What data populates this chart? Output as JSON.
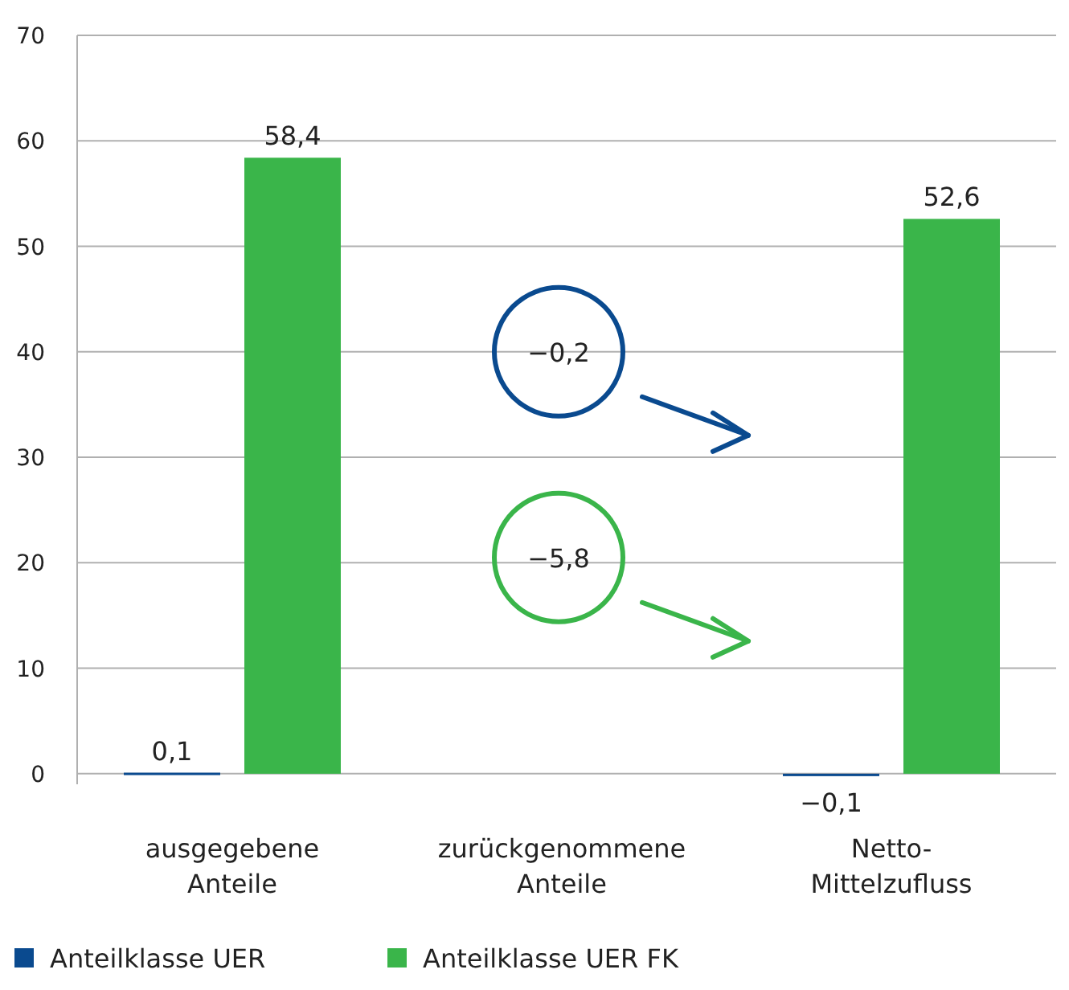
{
  "chart_data": {
    "type": "bar",
    "categories": [
      "ausgegebene Anteile",
      "zurückgenommene Anteile",
      "Netto-Mittelzufluss"
    ],
    "series": [
      {
        "name": "Anteilklasse UER",
        "color": "#0a4a8f",
        "values": [
          0.1,
          null,
          -0.1
        ],
        "value_labels": [
          "0,1",
          null,
          "−0,1"
        ]
      },
      {
        "name": "Anteilklasse UER FK",
        "color": "#3ab54a",
        "values": [
          58.4,
          null,
          52.6
        ],
        "value_labels": [
          "58,4",
          null,
          "52,6"
        ]
      }
    ],
    "annotations": [
      "−0,2",
      "−5,8"
    ],
    "ylim": [
      -1,
      70
    ],
    "yticks": [
      0,
      10,
      20,
      30,
      40,
      50,
      60,
      70
    ],
    "grid": "y",
    "legend": "bottom left"
  }
}
